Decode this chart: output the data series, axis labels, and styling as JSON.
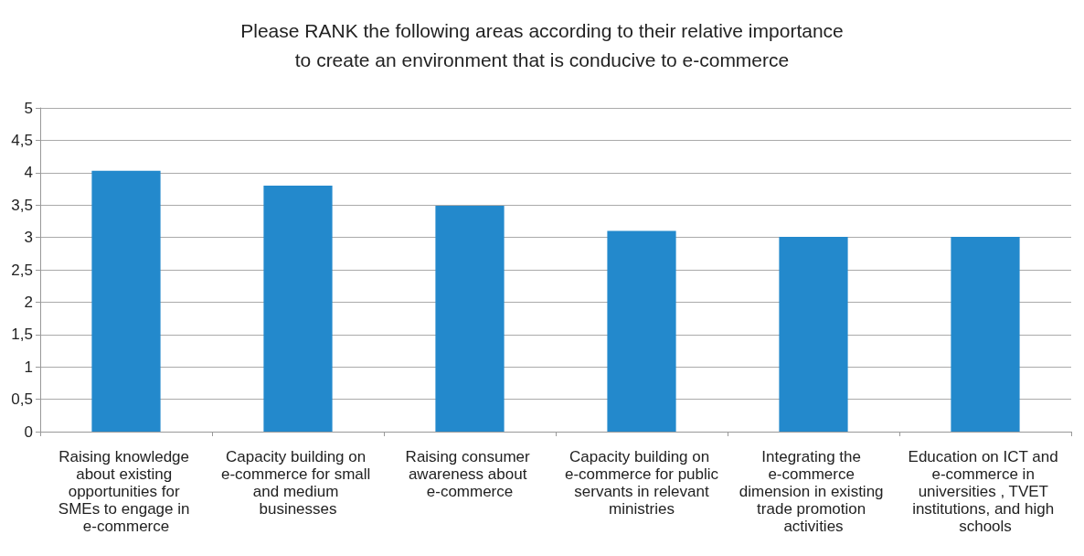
{
  "chart_data": {
    "type": "bar",
    "title": "Please RANK the following areas according to their relative importance\nto create an environment that is conducive to e-commerce",
    "categories": [
      "Raising knowledge about existing opportunities for SMEs to engage in e-commerce",
      "Capacity building on e-commerce for small and medium businesses",
      "Raising consumer awareness about e-commerce",
      "Capacity building on e-commerce for public servants in relevant ministries",
      "Integrating the e-commerce dimension in existing trade promotion activities",
      "Education on ICT and e-commerce in universities , TVET institutions, and high schools"
    ],
    "values": [
      4.03,
      3.8,
      3.49,
      3.1,
      3.01,
      3.01
    ],
    "color": "#2389cc",
    "ylim": [
      0,
      5
    ],
    "yticks": [
      0,
      {
        "value": 0.5,
        "label": "0,5"
      },
      1,
      {
        "value": 1.5,
        "label": "1,5"
      },
      2,
      {
        "value": 2.5,
        "label": "2,5"
      },
      3,
      {
        "value": 3.5,
        "label": "3,5"
      },
      4,
      {
        "value": 4.5,
        "label": "4,5"
      },
      5
    ],
    "grid": "y"
  }
}
